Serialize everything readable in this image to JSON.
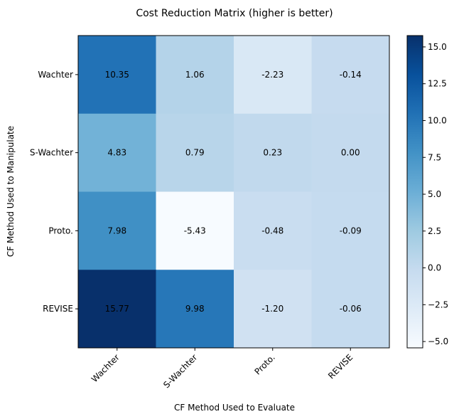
{
  "chart_data": {
    "type": "heatmap",
    "title": "Cost Reduction Matrix (higher is better)",
    "xlabel": "CF Method Used to Evaluate",
    "ylabel": "CF Method Used to Manipulate",
    "x_categories": [
      "Wachter",
      "S-Wachter",
      "Proto.",
      "REVISE"
    ],
    "y_categories": [
      "Wachter",
      "S-Wachter",
      "Proto.",
      "REVISE"
    ],
    "values": [
      [
        10.35,
        1.06,
        -2.23,
        -0.14
      ],
      [
        4.83,
        0.79,
        0.23,
        0.0
      ],
      [
        7.98,
        -5.43,
        -0.48,
        -0.09
      ],
      [
        15.77,
        9.98,
        -1.2,
        -0.06
      ]
    ],
    "value_labels": [
      [
        "10.35",
        "1.06",
        "-2.23",
        "-0.14"
      ],
      [
        "4.83",
        "0.79",
        "0.23",
        "0.00"
      ],
      [
        "7.98",
        "-5.43",
        "-0.48",
        "-0.09"
      ],
      [
        "15.77",
        "9.98",
        "-1.20",
        "-0.06"
      ]
    ],
    "colormap": "Blues",
    "vmin": -5.43,
    "vmax": 15.77,
    "colorbar_ticks": [
      -5.0,
      -2.5,
      0.0,
      2.5,
      5.0,
      7.5,
      10.0,
      12.5,
      15.0
    ],
    "colorbar_tick_labels": [
      "−5.0",
      "−2.5",
      "0.0",
      "2.5",
      "5.0",
      "7.5",
      "10.0",
      "12.5",
      "15.0"
    ],
    "x_tick_rotation": "45"
  }
}
